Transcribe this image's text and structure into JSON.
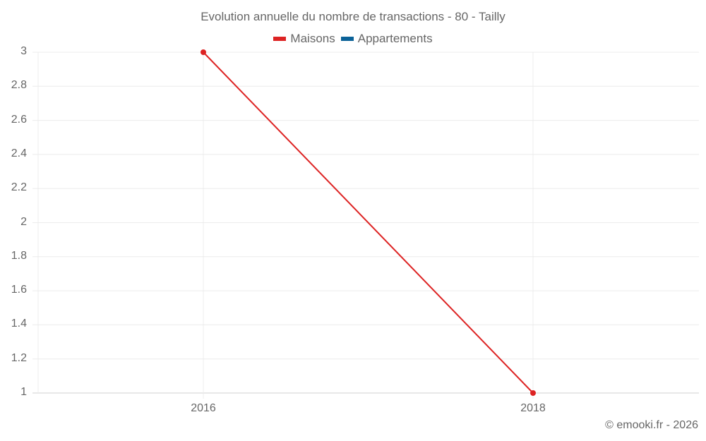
{
  "title": "Evolution annuelle du nombre de transactions - 80 - Tailly",
  "legend": [
    {
      "label": "Maisons",
      "color": "#dd2323"
    },
    {
      "label": "Appartements",
      "color": "#0b6298"
    }
  ],
  "credit": "© emooki.fr - 2026",
  "chart_data": {
    "type": "line",
    "title": "Evolution annuelle du nombre de transactions - 80 - Tailly",
    "xlabel": "",
    "ylabel": "",
    "categories": [
      "2016",
      "2018"
    ],
    "x": [
      2016,
      2018
    ],
    "series": [
      {
        "name": "Maisons",
        "color": "#dd2323",
        "values": [
          3,
          1
        ]
      },
      {
        "name": "Appartements",
        "color": "#0b6298",
        "values": [
          null,
          null
        ]
      }
    ],
    "ylim": [
      1,
      3
    ],
    "yticks": [
      "3",
      "2.8",
      "2.6",
      "2.4",
      "2.2",
      "2",
      "1.8",
      "1.6",
      "1.4",
      "1.2",
      "1"
    ],
    "xticks": [
      "2016",
      "2018"
    ],
    "grid": true,
    "legend_position": "top"
  }
}
